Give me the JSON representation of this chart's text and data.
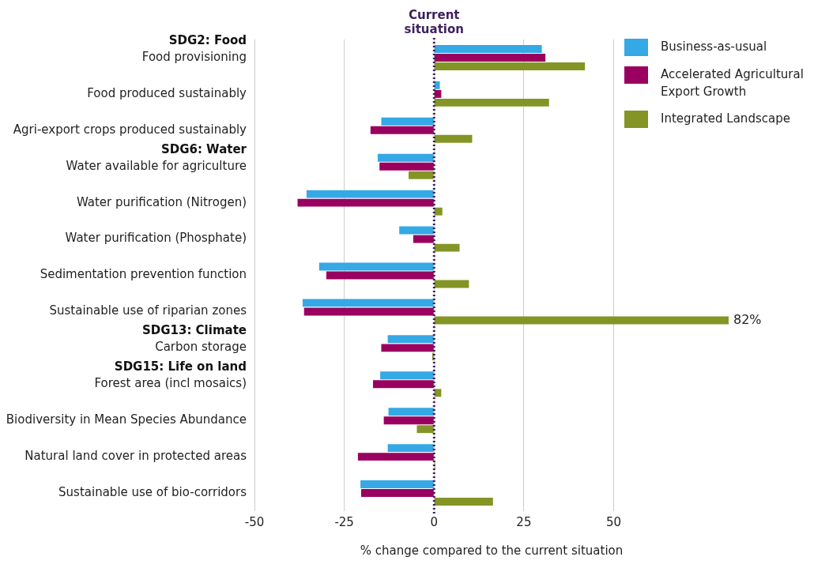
{
  "chart_data": {
    "type": "bar",
    "orientation": "horizontal",
    "xlabel": "% change compared to the current situation",
    "categories": [
      "Food provisioning",
      "Food produced sustainably",
      "Agri-export crops produced sustainably",
      "Water available for agriculture",
      "Water purification (Nitrogen)",
      "Water purification (Phosphate)",
      "Sedimentation prevention function",
      "Sustainable use of riparian zones",
      "Carbon storage",
      "Forest area (incl mosaics)",
      "Biodiversity in Mean Species Abundance",
      "Natural land cover in protected areas",
      "Sustainable use of bio-corridors"
    ],
    "series": [
      {
        "name": "Business-as-usual",
        "color": "#35a8e6",
        "values": [
          30,
          1.6,
          -14.7,
          -15.7,
          -35.5,
          -9.7,
          -32,
          -36.6,
          -12.9,
          -15,
          -12.7,
          -12.9,
          -20.5
        ]
      },
      {
        "name": "Accelerated Agricultural Export Growth",
        "color": "#990060",
        "values": [
          31,
          2,
          -17.7,
          -15.2,
          -38,
          -5.8,
          -30,
          -36.2,
          -14.7,
          -17,
          -14,
          -21.2,
          -20.3
        ]
      },
      {
        "name": "Integrated Landscape",
        "color": "#849526",
        "values": [
          42,
          32,
          10.6,
          -7.1,
          2.3,
          7.1,
          9.7,
          82,
          -0.5,
          2,
          -4.8,
          0.3,
          16.4
        ],
        "value_labels": [
          null,
          null,
          null,
          null,
          null,
          null,
          null,
          "82%",
          null,
          null,
          null,
          null,
          null
        ]
      }
    ],
    "xlim": [
      -50,
      82
    ],
    "xticks": [
      -50,
      -25,
      0,
      25,
      50
    ],
    "grid": "x",
    "legend": "top right",
    "ref_lines": [
      {
        "axis": "x",
        "value": 0,
        "label": "Current situation",
        "color": "#3d1f5c",
        "line_style": "dotted"
      }
    ],
    "annotations": [
      "SDG2: Food",
      "SDG6: Water",
      "SDG13: Climate",
      "SDG15: Life on land"
    ]
  }
}
